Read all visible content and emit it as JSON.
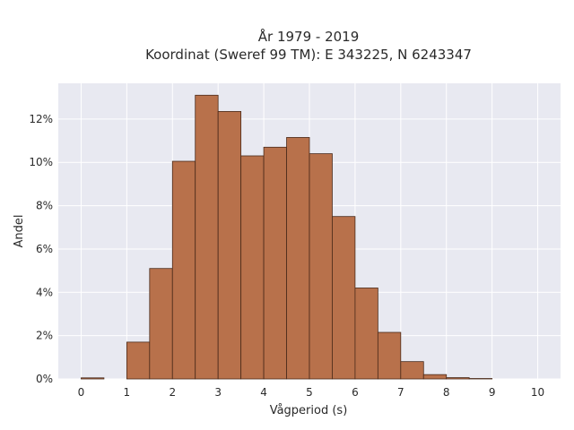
{
  "chart_data": {
    "type": "bar",
    "title_lines": [
      "År 1979 - 2019",
      "Koordinat (Sweref 99 TM): E 343225, N 6243347"
    ],
    "xlabel": "Vågperiod (s)",
    "ylabel": "Andel",
    "xlim": [
      -0.5,
      10.5
    ],
    "ylim": [
      0,
      0.1365
    ],
    "x_ticks": [
      0,
      1,
      2,
      3,
      4,
      5,
      6,
      7,
      8,
      9,
      10
    ],
    "y_ticks": [
      0,
      0.02,
      0.04,
      0.06,
      0.08,
      0.1,
      0.12
    ],
    "y_tick_labels": [
      "0%",
      "2%",
      "4%",
      "6%",
      "8%",
      "10%",
      "12%"
    ],
    "grid": true,
    "bin_width": 0.5,
    "bins": [
      {
        "x0": 0.0,
        "x1": 0.5,
        "value": 0.0005
      },
      {
        "x0": 0.5,
        "x1": 1.0,
        "value": 0.0
      },
      {
        "x0": 1.0,
        "x1": 1.5,
        "value": 0.017
      },
      {
        "x0": 1.5,
        "x1": 2.0,
        "value": 0.051
      },
      {
        "x0": 2.0,
        "x1": 2.5,
        "value": 0.1005
      },
      {
        "x0": 2.5,
        "x1": 3.0,
        "value": 0.131
      },
      {
        "x0": 3.0,
        "x1": 3.5,
        "value": 0.1235
      },
      {
        "x0": 3.5,
        "x1": 4.0,
        "value": 0.103
      },
      {
        "x0": 4.0,
        "x1": 4.5,
        "value": 0.107
      },
      {
        "x0": 4.5,
        "x1": 5.0,
        "value": 0.1115
      },
      {
        "x0": 5.0,
        "x1": 5.5,
        "value": 0.104
      },
      {
        "x0": 5.5,
        "x1": 6.0,
        "value": 0.075
      },
      {
        "x0": 6.0,
        "x1": 6.5,
        "value": 0.042
      },
      {
        "x0": 6.5,
        "x1": 7.0,
        "value": 0.0215
      },
      {
        "x0": 7.0,
        "x1": 7.5,
        "value": 0.008
      },
      {
        "x0": 7.5,
        "x1": 8.0,
        "value": 0.002
      },
      {
        "x0": 8.0,
        "x1": 8.5,
        "value": 0.0006
      },
      {
        "x0": 8.5,
        "x1": 9.0,
        "value": 0.0002
      }
    ],
    "colors": {
      "bar_fill": "#b8714b",
      "bar_stroke": "#4a2a1a",
      "plot_background": "#e8e9f1",
      "grid": "#ffffff"
    }
  }
}
